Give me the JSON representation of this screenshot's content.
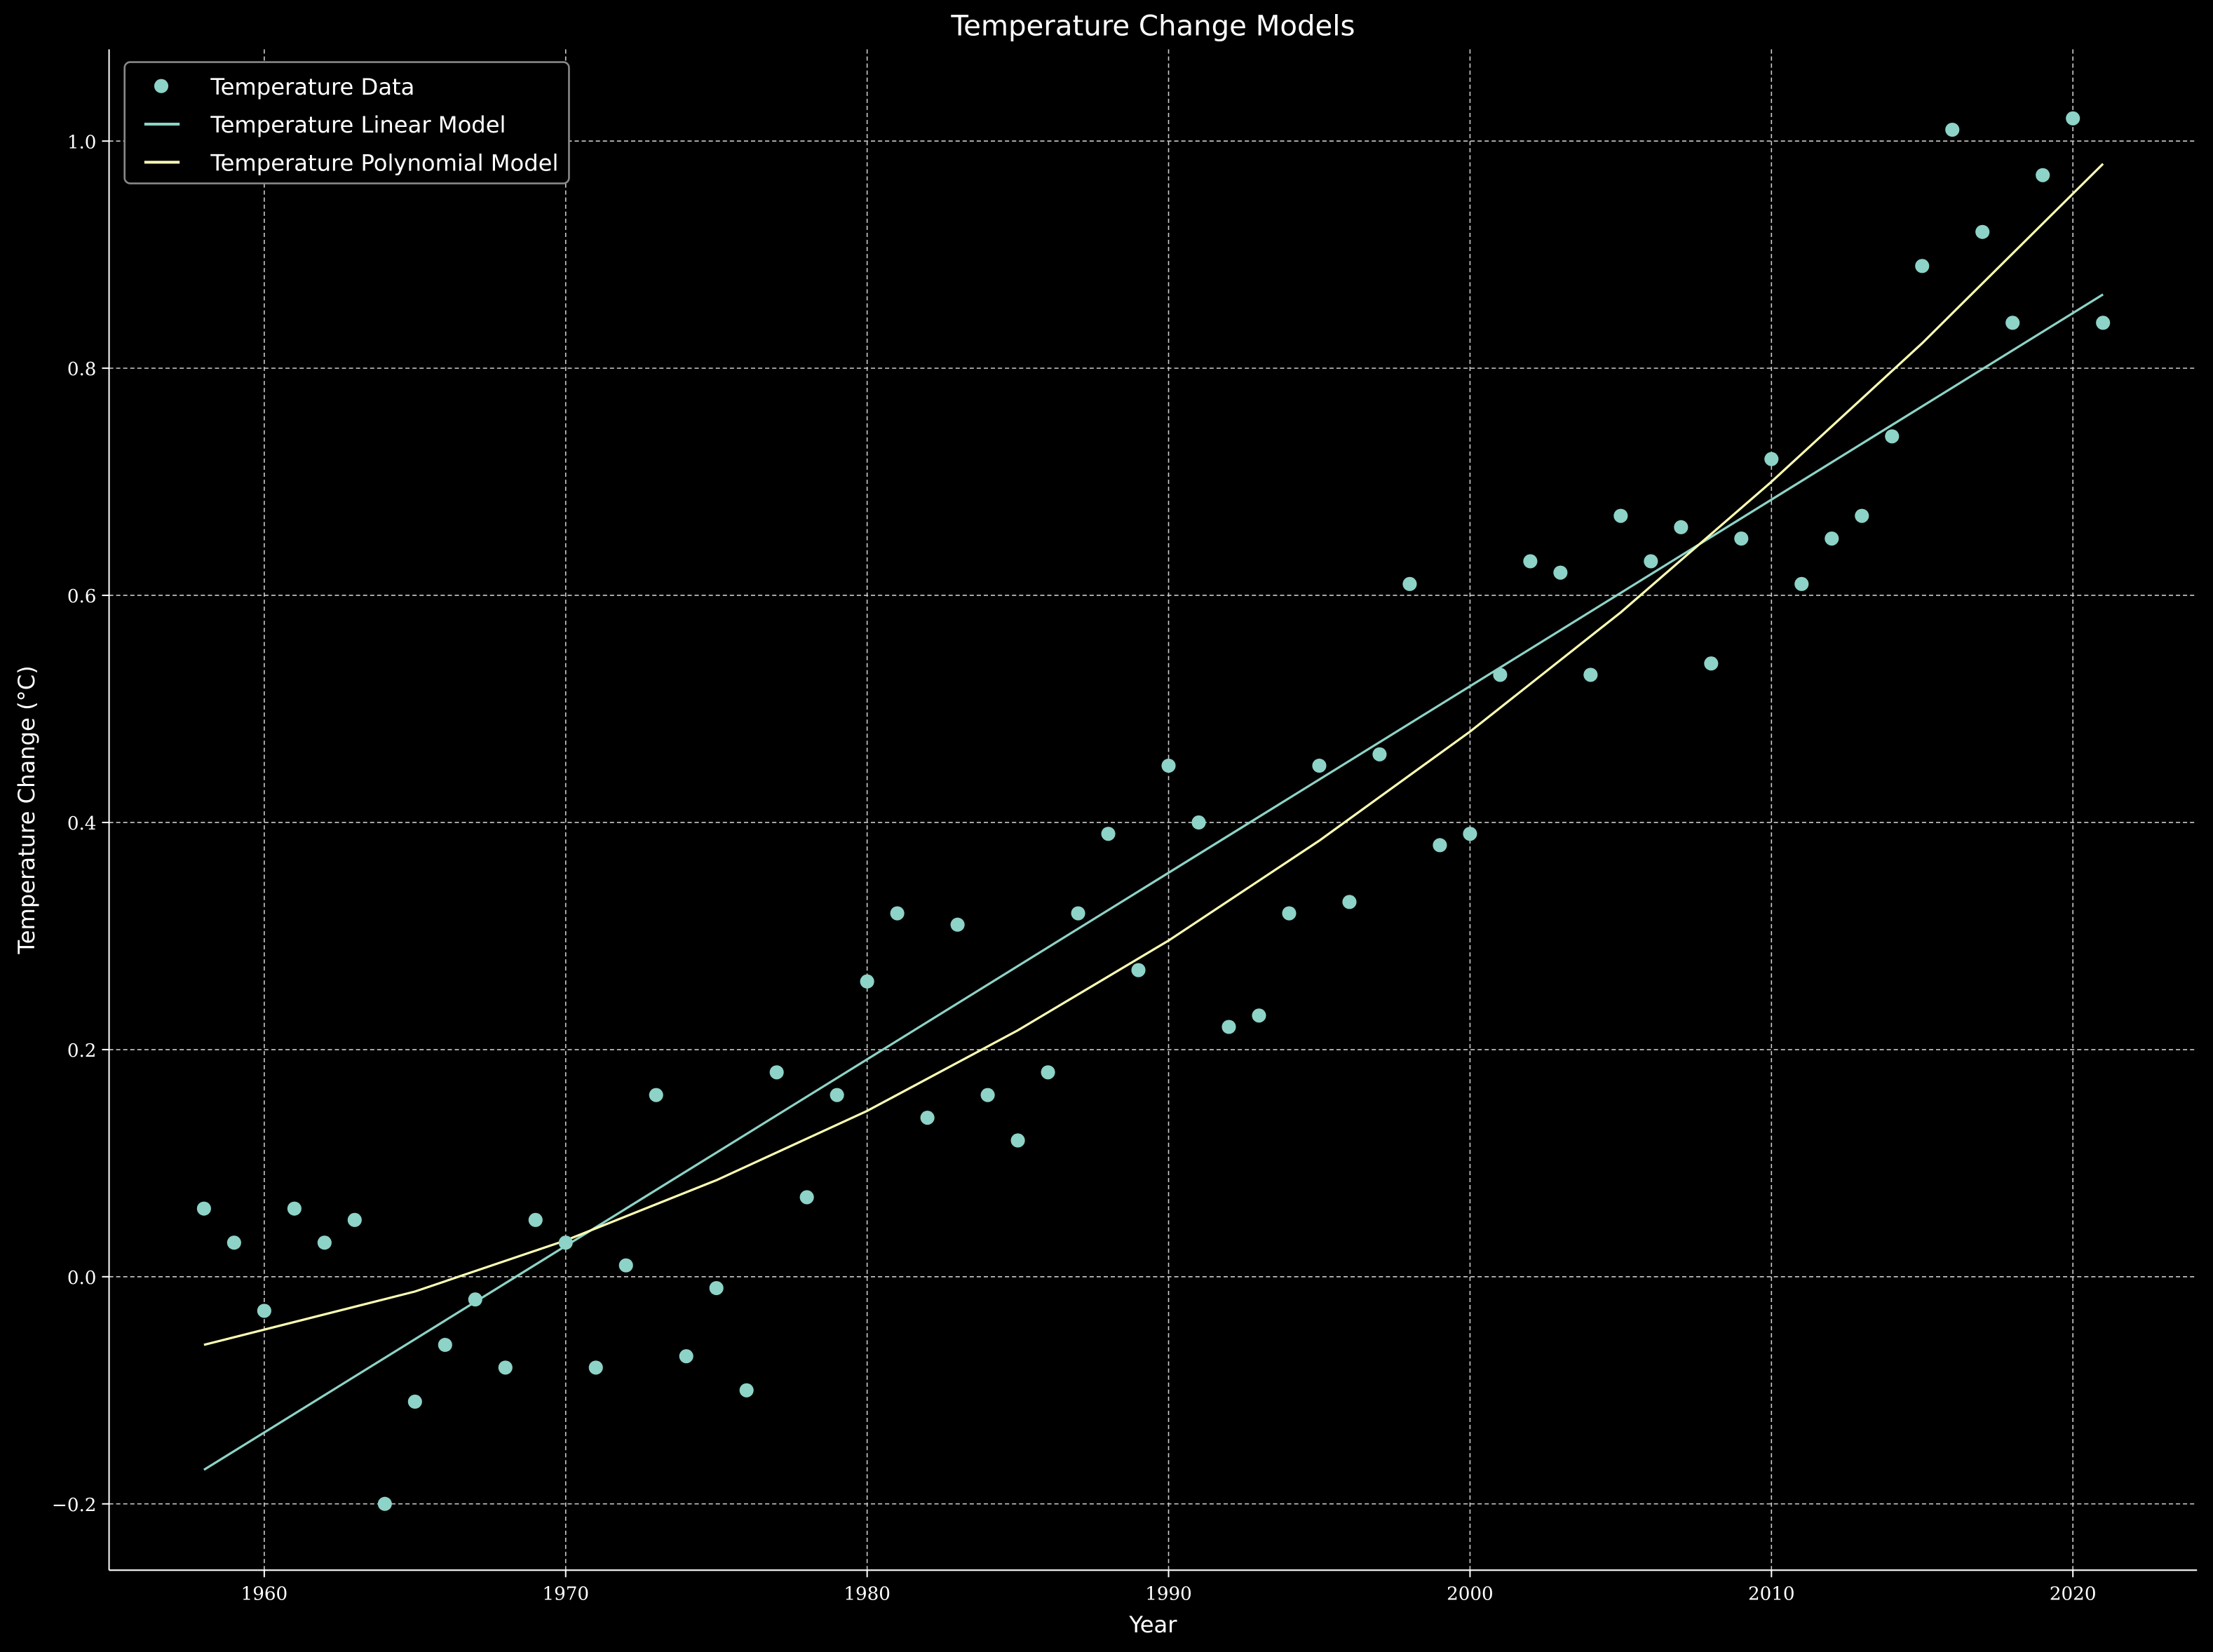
{
  "chart_data": {
    "type": "scatter",
    "title": "Temperature Change Models",
    "xlabel": "Year",
    "ylabel": "Temperature Change (°C)",
    "xlim": [
      1955,
      2024
    ],
    "ylim": [
      -0.26,
      1.08
    ],
    "xticks": [
      1960,
      1970,
      1980,
      1990,
      2000,
      2010,
      2020
    ],
    "yticks": [
      -0.2,
      0.0,
      0.2,
      0.4,
      0.6,
      0.8,
      1.0
    ],
    "ytick_labels": [
      "−0.2",
      "0.0",
      "0.2",
      "0.4",
      "0.6",
      "0.8",
      "1.0"
    ],
    "grid": true,
    "legend_position": "top-left",
    "series": [
      {
        "name": "Temperature Data",
        "kind": "scatter",
        "color": "#8dd3c7",
        "x": [
          1958,
          1959,
          1960,
          1961,
          1962,
          1963,
          1964,
          1965,
          1966,
          1967,
          1968,
          1969,
          1970,
          1971,
          1972,
          1973,
          1974,
          1975,
          1976,
          1977,
          1978,
          1979,
          1980,
          1981,
          1982,
          1983,
          1984,
          1985,
          1986,
          1987,
          1988,
          1989,
          1990,
          1991,
          1992,
          1993,
          1994,
          1995,
          1996,
          1997,
          1998,
          1999,
          2000,
          2001,
          2002,
          2003,
          2004,
          2005,
          2006,
          2007,
          2008,
          2009,
          2010,
          2011,
          2012,
          2013,
          2014,
          2015,
          2016,
          2017,
          2018,
          2019,
          2020,
          2021
        ],
        "y": [
          0.06,
          0.03,
          -0.03,
          0.06,
          0.03,
          0.05,
          -0.2,
          -0.11,
          -0.06,
          -0.02,
          -0.08,
          0.05,
          0.03,
          -0.08,
          0.01,
          0.16,
          -0.07,
          -0.01,
          -0.1,
          0.18,
          0.07,
          0.16,
          0.26,
          0.32,
          0.14,
          0.31,
          0.16,
          0.12,
          0.18,
          0.32,
          0.39,
          0.27,
          0.45,
          0.4,
          0.22,
          0.23,
          0.32,
          0.45,
          0.33,
          0.46,
          0.61,
          0.38,
          0.39,
          0.53,
          0.63,
          0.62,
          0.53,
          0.67,
          0.63,
          0.66,
          0.54,
          0.65,
          0.72,
          0.61,
          0.65,
          0.67,
          0.74,
          0.89,
          1.01,
          0.92,
          0.84,
          0.97,
          1.02,
          0.84
        ]
      },
      {
        "name": "Temperature Linear Model",
        "kind": "line",
        "color": "#8dd3c7",
        "x": [
          1958,
          2021
        ],
        "y": [
          -0.17,
          0.865
        ]
      },
      {
        "name": "Temperature Polynomial Model",
        "kind": "line",
        "color": "#feffb3",
        "x": [
          1958,
          1965,
          1970,
          1975,
          1980,
          1985,
          1990,
          1995,
          2000,
          2005,
          2010,
          2015,
          2021
        ],
        "y": [
          -0.06,
          -0.013,
          0.032,
          0.085,
          0.146,
          0.217,
          0.296,
          0.384,
          0.48,
          0.585,
          0.7,
          0.822,
          0.98
        ]
      }
    ]
  }
}
